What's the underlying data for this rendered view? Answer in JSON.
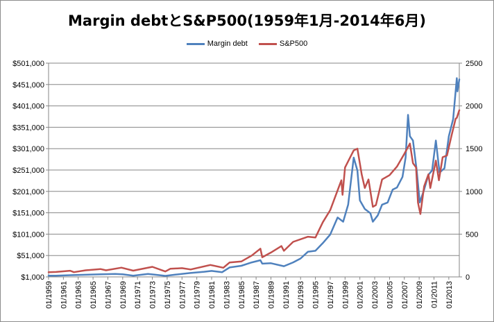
{
  "chart_data": {
    "type": "line",
    "title": "Margin debtとS&P500(1959年1月-2014年6月)",
    "legend_position": "top",
    "grid": true,
    "x_range": [
      "1959-01",
      "2014-06"
    ],
    "x_tick_labels": [
      "01/1959",
      "01/1961",
      "01/1963",
      "01/1965",
      "01/1967",
      "01/1969",
      "01/1971",
      "01/1973",
      "01/1975",
      "01/1977",
      "01/1979",
      "01/1981",
      "01/1983",
      "01/1985",
      "01/1987",
      "01/1989",
      "01/1991",
      "01/1993",
      "01/1995",
      "01/1997",
      "01/1999",
      "01/2001",
      "01/2003",
      "01/2005",
      "01/2007",
      "01/2009",
      "01/2011",
      "01/2013"
    ],
    "y_left": {
      "min": 1000,
      "max": 501000,
      "tick_labels": [
        "$1,000",
        "$51,000",
        "$101,000",
        "$151,000",
        "$201,000",
        "$251,000",
        "$301,000",
        "$351,000",
        "$401,000",
        "$451,000",
        "$501,000"
      ]
    },
    "y_right": {
      "min": 0,
      "max": 2500,
      "tick_labels": [
        "0",
        "500",
        "1000",
        "1500",
        "2000",
        "2500"
      ]
    },
    "series": [
      {
        "name": "Margin debt",
        "axis": "left",
        "color": "#4f81bd",
        "points": [
          [
            "1959-01",
            4000
          ],
          [
            "1960-01",
            4000
          ],
          [
            "1962-01",
            5000
          ],
          [
            "1964-01",
            6000
          ],
          [
            "1966-01",
            7000
          ],
          [
            "1968-01",
            8000
          ],
          [
            "1969-01",
            7000
          ],
          [
            "1970-06",
            4000
          ],
          [
            "1972-06",
            8000
          ],
          [
            "1973-06",
            6000
          ],
          [
            "1974-10",
            3500
          ],
          [
            "1976-01",
            6000
          ],
          [
            "1978-01",
            10000
          ],
          [
            "1980-01",
            13000
          ],
          [
            "1981-01",
            15000
          ],
          [
            "1982-06",
            12000
          ],
          [
            "1983-06",
            23000
          ],
          [
            "1985-01",
            27000
          ],
          [
            "1986-06",
            35000
          ],
          [
            "1987-08",
            40000
          ],
          [
            "1987-11",
            32000
          ],
          [
            "1989-01",
            33000
          ],
          [
            "1990-10",
            26000
          ],
          [
            "1992-01",
            35000
          ],
          [
            "1993-01",
            44000
          ],
          [
            "1994-01",
            60000
          ],
          [
            "1995-01",
            62000
          ],
          [
            "1996-01",
            80000
          ],
          [
            "1997-01",
            100000
          ],
          [
            "1998-01",
            140000
          ],
          [
            "1998-10",
            130000
          ],
          [
            "1999-06",
            170000
          ],
          [
            "2000-03",
            280000
          ],
          [
            "2000-09",
            250000
          ],
          [
            "2001-01",
            180000
          ],
          [
            "2001-09",
            160000
          ],
          [
            "2002-06",
            150000
          ],
          [
            "2002-10",
            130000
          ],
          [
            "2003-06",
            145000
          ],
          [
            "2004-01",
            170000
          ],
          [
            "2004-10",
            175000
          ],
          [
            "2005-06",
            205000
          ],
          [
            "2006-01",
            210000
          ],
          [
            "2006-10",
            235000
          ],
          [
            "2007-03",
            280000
          ],
          [
            "2007-07",
            380000
          ],
          [
            "2007-10",
            330000
          ],
          [
            "2008-03",
            320000
          ],
          [
            "2008-09",
            250000
          ],
          [
            "2009-02",
            175000
          ],
          [
            "2009-09",
            205000
          ],
          [
            "2010-04",
            240000
          ],
          [
            "2010-10",
            250000
          ],
          [
            "2011-04",
            320000
          ],
          [
            "2011-10",
            245000
          ],
          [
            "2012-06",
            255000
          ],
          [
            "2013-01",
            330000
          ],
          [
            "2013-08",
            370000
          ],
          [
            "2014-02",
            466000
          ],
          [
            "2014-03",
            435000
          ],
          [
            "2014-06",
            463000
          ]
        ]
      },
      {
        "name": "S&P500",
        "axis": "right",
        "color": "#c0504d",
        "points": [
          [
            "1959-01",
            55
          ],
          [
            "1960-01",
            58
          ],
          [
            "1961-12",
            72
          ],
          [
            "1962-06",
            55
          ],
          [
            "1964-01",
            77
          ],
          [
            "1966-01",
            92
          ],
          [
            "1966-10",
            77
          ],
          [
            "1968-11",
            108
          ],
          [
            "1970-06",
            73
          ],
          [
            "1973-01",
            118
          ],
          [
            "1974-10",
            63
          ],
          [
            "1975-06",
            95
          ],
          [
            "1977-01",
            102
          ],
          [
            "1978-03",
            87
          ],
          [
            "1980-11",
            140
          ],
          [
            "1982-08",
            107
          ],
          [
            "1983-06",
            168
          ],
          [
            "1985-01",
            180
          ],
          [
            "1986-06",
            250
          ],
          [
            "1987-08",
            330
          ],
          [
            "1987-11",
            230
          ],
          [
            "1989-01",
            285
          ],
          [
            "1990-06",
            360
          ],
          [
            "1990-10",
            305
          ],
          [
            "1992-01",
            410
          ],
          [
            "1994-01",
            470
          ],
          [
            "1995-01",
            460
          ],
          [
            "1996-01",
            640
          ],
          [
            "1997-01",
            780
          ],
          [
            "1998-07",
            1130
          ],
          [
            "1998-09",
            960
          ],
          [
            "1999-01",
            1280
          ],
          [
            "2000-03",
            1480
          ],
          [
            "2000-09",
            1500
          ],
          [
            "2001-04",
            1200
          ],
          [
            "2001-09",
            1040
          ],
          [
            "2002-03",
            1140
          ],
          [
            "2002-10",
            820
          ],
          [
            "2003-03",
            840
          ],
          [
            "2004-01",
            1140
          ],
          [
            "2005-01",
            1190
          ],
          [
            "2006-01",
            1290
          ],
          [
            "2007-01",
            1440
          ],
          [
            "2007-10",
            1560
          ],
          [
            "2008-03",
            1330
          ],
          [
            "2008-08",
            1280
          ],
          [
            "2008-11",
            870
          ],
          [
            "2009-03",
            735
          ],
          [
            "2009-09",
            1060
          ],
          [
            "2010-04",
            1200
          ],
          [
            "2010-07",
            1040
          ],
          [
            "2011-04",
            1360
          ],
          [
            "2011-09",
            1130
          ],
          [
            "2012-03",
            1400
          ],
          [
            "2012-10",
            1420
          ],
          [
            "2013-05",
            1640
          ],
          [
            "2013-12",
            1850
          ],
          [
            "2014-02",
            1860
          ],
          [
            "2014-06",
            1950
          ]
        ]
      }
    ]
  }
}
